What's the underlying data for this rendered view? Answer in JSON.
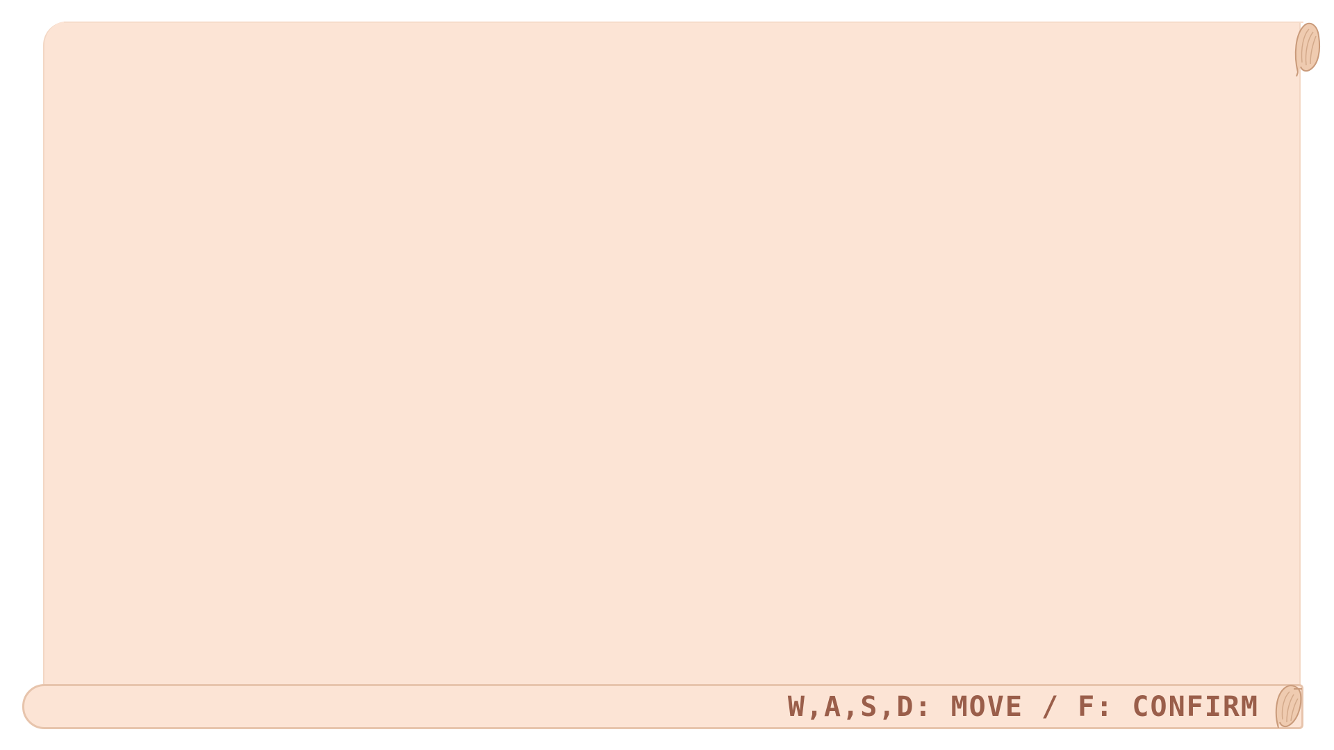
{
  "scroll": {
    "paper_color": "#fce4d5",
    "edge_color": "#e7c4ac",
    "wood_color": "#e8c4a6",
    "wood_stroke": "#c99a7a"
  },
  "icons": {
    "top_roller": "scroll-roll-end-icon",
    "bottom_roller": "scroll-roll-end-icon"
  },
  "footer": {
    "controls_hint": "W,A,S,D: MOVE / F: CONFIRM",
    "text_color": "#9a5e4a"
  }
}
